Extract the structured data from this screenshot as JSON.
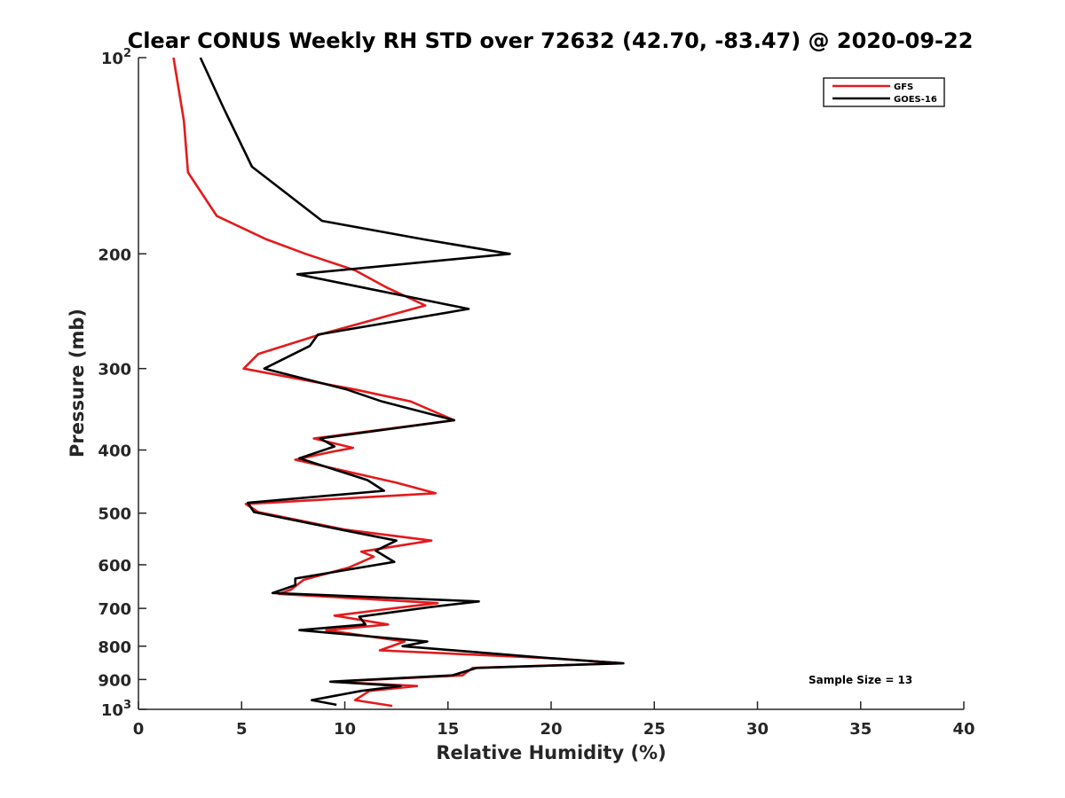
{
  "chart_data": {
    "type": "line",
    "title": "Clear CONUS Weekly RH STD over 72632 (42.70, -83.47) @ 2020-09-22",
    "xlabel": "Relative Humidity (%)",
    "ylabel": "Pressure (mb)",
    "xlim": [
      0,
      40
    ],
    "ylim": [
      100,
      1000
    ],
    "y_scale": "log",
    "y_reversed": true,
    "x_ticks": [
      "0",
      "5",
      "10",
      "15",
      "20",
      "25",
      "30",
      "35",
      "40"
    ],
    "y_ticks": [
      {
        "value": 100,
        "base": "10",
        "exp": "2"
      },
      {
        "value": 200,
        "label": "200"
      },
      {
        "value": 300,
        "label": "300"
      },
      {
        "value": 400,
        "label": "400"
      },
      {
        "value": 500,
        "label": "500"
      },
      {
        "value": 600,
        "label": "600"
      },
      {
        "value": 700,
        "label": "700"
      },
      {
        "value": 800,
        "label": "800"
      },
      {
        "value": 900,
        "label": "900"
      },
      {
        "value": 1000,
        "base": "10",
        "exp": "3"
      }
    ],
    "grid": false,
    "legend_position": "top-right",
    "annotation": "Sample Size = 13",
    "series": [
      {
        "name": "GFS",
        "color": "#e31a1c",
        "points": [
          [
            1.7,
            100
          ],
          [
            2.2,
            125
          ],
          [
            2.4,
            150
          ],
          [
            3.8,
            175
          ],
          [
            6.2,
            190
          ],
          [
            8.1,
            200
          ],
          [
            10.5,
            212
          ],
          [
            12.0,
            225
          ],
          [
            13.9,
            240
          ],
          [
            8.8,
            266
          ],
          [
            5.8,
            285
          ],
          [
            5.1,
            300
          ],
          [
            10.5,
            323
          ],
          [
            13.2,
            337
          ],
          [
            15.3,
            360
          ],
          [
            8.5,
            384
          ],
          [
            10.4,
            397
          ],
          [
            9.3,
            403
          ],
          [
            7.6,
            414
          ],
          [
            12.5,
            449
          ],
          [
            14.4,
            466
          ],
          [
            5.2,
            484
          ],
          [
            5.8,
            498
          ],
          [
            10.0,
            530
          ],
          [
            14.2,
            551
          ],
          [
            10.8,
            573
          ],
          [
            11.4,
            583
          ],
          [
            10.2,
            606
          ],
          [
            8.0,
            633
          ],
          [
            7.4,
            655
          ],
          [
            6.8,
            665
          ],
          [
            14.5,
            687
          ],
          [
            12.8,
            697
          ],
          [
            9.5,
            718
          ],
          [
            12.1,
            741
          ],
          [
            9.1,
            756
          ],
          [
            12.9,
            787
          ],
          [
            11.7,
            812
          ],
          [
            20.1,
            835
          ],
          [
            23.4,
            850
          ],
          [
            16.2,
            864
          ],
          [
            15.7,
            887
          ],
          [
            9.4,
            907
          ],
          [
            13.5,
            921
          ],
          [
            11.2,
            937
          ],
          [
            10.5,
            968
          ],
          [
            12.3,
            988
          ]
        ]
      },
      {
        "name": "GOES-16",
        "color": "#000000",
        "points": [
          [
            3.0,
            100
          ],
          [
            4.1,
            119
          ],
          [
            5.5,
            147
          ],
          [
            8.9,
            178
          ],
          [
            13.8,
            190
          ],
          [
            18.0,
            200
          ],
          [
            7.7,
            215
          ],
          [
            16.0,
            243
          ],
          [
            8.7,
            266
          ],
          [
            8.3,
            277
          ],
          [
            6.1,
            300
          ],
          [
            10.1,
            323
          ],
          [
            11.8,
            337
          ],
          [
            15.3,
            360
          ],
          [
            8.8,
            384
          ],
          [
            9.5,
            395
          ],
          [
            7.8,
            412
          ],
          [
            11.1,
            445
          ],
          [
            11.9,
            462
          ],
          [
            5.3,
            482
          ],
          [
            5.6,
            498
          ],
          [
            9.8,
            530
          ],
          [
            12.5,
            551
          ],
          [
            11.5,
            571
          ],
          [
            12.4,
            594
          ],
          [
            7.6,
            630
          ],
          [
            7.6,
            645
          ],
          [
            6.5,
            663
          ],
          [
            16.5,
            683
          ],
          [
            14.1,
            697
          ],
          [
            10.7,
            721
          ],
          [
            11.0,
            741
          ],
          [
            7.8,
            756
          ],
          [
            14.0,
            787
          ],
          [
            12.8,
            800
          ],
          [
            20.0,
            835
          ],
          [
            23.5,
            850
          ],
          [
            16.4,
            864
          ],
          [
            15.2,
            887
          ],
          [
            9.3,
            907
          ],
          [
            12.7,
            921
          ],
          [
            10.8,
            937
          ],
          [
            8.4,
            968
          ],
          [
            9.6,
            984
          ]
        ]
      }
    ]
  }
}
